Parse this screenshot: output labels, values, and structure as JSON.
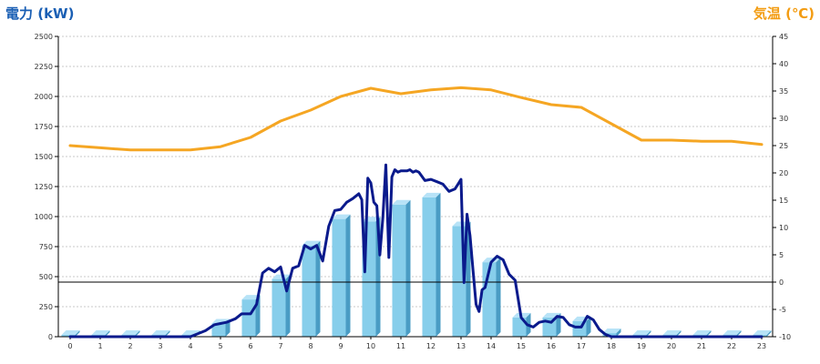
{
  "chart_data": {
    "type": "bar",
    "left_axis_title": "電力 (kW)",
    "right_axis_title": "気温 (℃)",
    "categories": [
      "0",
      "1",
      "2",
      "3",
      "4",
      "5",
      "6",
      "7",
      "8",
      "9",
      "10",
      "11",
      "12",
      "13",
      "14",
      "15",
      "16",
      "17",
      "18",
      "19",
      "20",
      "21",
      "22",
      "23"
    ],
    "y_left": {
      "min": 0,
      "max": 2500,
      "ticks": [
        "0",
        "250",
        "500",
        "750",
        "1000",
        "1250",
        "1500",
        "1750",
        "2000",
        "2250",
        "2500"
      ]
    },
    "y_right": {
      "min": -10,
      "max": 45,
      "ticks": [
        "-10",
        "-5",
        "0",
        "5",
        "10",
        "15",
        "20",
        "25",
        "30",
        "35",
        "40",
        "45"
      ]
    },
    "grid": true,
    "colors": {
      "bar": "#87ceeb",
      "bar_side": "#4a9cc4",
      "bar_top": "#b7e3f7",
      "power_line": "#0a1a8c",
      "temp_line": "#f5a623",
      "axis_title_left": "#1a5fb4",
      "axis_title_right": "#f39c12"
    },
    "series": [
      {
        "kind": "bar",
        "axis": "left",
        "values": [
          15,
          15,
          15,
          15,
          15,
          110,
          310,
          480,
          760,
          980,
          960,
          1100,
          1160,
          920,
          620,
          160,
          160,
          130,
          30,
          15,
          15,
          15,
          15,
          15
        ]
      },
      {
        "kind": "line",
        "axis": "right",
        "x": [
          0,
          1,
          2,
          3,
          4,
          5,
          6,
          7,
          8,
          9,
          10,
          11,
          12,
          13,
          14,
          15,
          16,
          17,
          18,
          19,
          20,
          21,
          22,
          23
        ],
        "values": [
          25,
          24.6,
          24.2,
          24.2,
          24.2,
          24.8,
          26.5,
          29.5,
          31.5,
          34,
          35.5,
          34.5,
          35.2,
          35.6,
          35.2,
          33.8,
          32.5,
          32,
          29,
          26,
          26,
          25.8,
          25.8,
          25.2
        ]
      },
      {
        "kind": "line",
        "axis": "left",
        "x": [
          0,
          1,
          2,
          3,
          4,
          4.5,
          4.8,
          5,
          5.2,
          5.5,
          5.7,
          6,
          6.2,
          6.4,
          6.6,
          6.8,
          7,
          7.2,
          7.4,
          7.6,
          7.8,
          8,
          8.2,
          8.4,
          8.6,
          8.8,
          9,
          9.2,
          9.4,
          9.6,
          9.7,
          9.8,
          9.9,
          10,
          10.1,
          10.2,
          10.3,
          10.4,
          10.5,
          10.6,
          10.7,
          10.8,
          10.9,
          11,
          11.1,
          11.2,
          11.3,
          11.4,
          11.5,
          11.6,
          11.8,
          12,
          12.2,
          12.4,
          12.6,
          12.8,
          12.9,
          13,
          13.1,
          13.2,
          13.3,
          13.4,
          13.5,
          13.6,
          13.7,
          13.8,
          14,
          14.2,
          14.4,
          14.6,
          14.8,
          15,
          15.2,
          15.4,
          15.6,
          15.8,
          16,
          16.2,
          16.4,
          16.6,
          16.8,
          17,
          17.2,
          17.4,
          17.6,
          17.8,
          18,
          19,
          20,
          21,
          22,
          23
        ],
        "values": [
          0,
          0,
          0,
          0,
          0,
          50,
          100,
          110,
          120,
          150,
          190,
          190,
          270,
          530,
          570,
          540,
          580,
          380,
          570,
          590,
          760,
          730,
          760,
          630,
          920,
          1050,
          1060,
          1120,
          1150,
          1190,
          1140,
          540,
          1320,
          1280,
          1120,
          1090,
          680,
          990,
          1430,
          660,
          1330,
          1390,
          1370,
          1380,
          1380,
          1380,
          1390,
          1370,
          1380,
          1370,
          1300,
          1310,
          1290,
          1270,
          1210,
          1230,
          1270,
          1310,
          450,
          1020,
          840,
          550,
          270,
          210,
          390,
          410,
          620,
          670,
          640,
          520,
          470,
          160,
          100,
          80,
          120,
          130,
          120,
          170,
          160,
          100,
          80,
          80,
          170,
          140,
          60,
          20,
          0,
          0,
          0,
          0,
          0,
          0
        ]
      }
    ]
  }
}
